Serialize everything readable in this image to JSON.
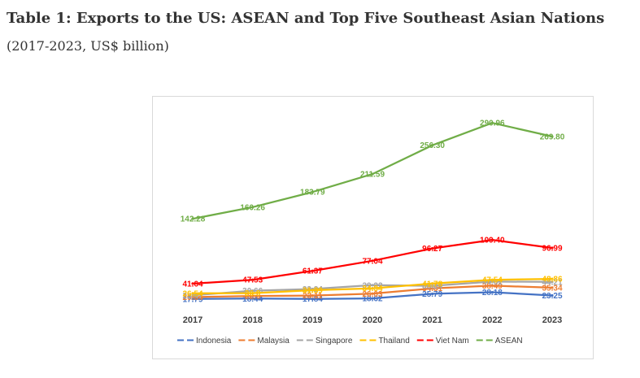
{
  "page": {
    "title": "Table 1: Exports to the US: ASEAN and Top Five Southeast Asian Nations",
    "subtitle": "(2017-2023, US$ billion)"
  },
  "chart_data": {
    "type": "line",
    "categories": [
      "2017",
      "2018",
      "2019",
      "2020",
      "2021",
      "2022",
      "2023"
    ],
    "series": [
      {
        "name": "Indonesia",
        "color": "#4472C4",
        "values": [
          17.79,
          18.44,
          17.84,
          18.62,
          25.79,
          28.18,
          23.25
        ],
        "labels": [
          "17.79",
          "18.44",
          "17.84",
          "18.62",
          "25.79",
          "28.18",
          "23.25"
        ]
      },
      {
        "name": "Malaysia",
        "color": "#ED7D31",
        "values": [
          20.64,
          22.5,
          23.11,
          26.03,
          34.31,
          38.49,
          35.34
        ],
        "labels": [
          "20.64",
          "22.5",
          "23.11",
          "26.03",
          "34.31",
          "38.49",
          "35.34"
        ]
      },
      {
        "name": "Singapore",
        "color": "#A5A5A5",
        "values": [
          23.47,
          30.66,
          33.24,
          39.22,
          38.24,
          44.81,
          44.21
        ],
        "labels": [
          "23.47",
          "30.66",
          "33.24",
          "39.22",
          "38.24",
          "44.81",
          "44.21"
        ]
      },
      {
        "name": "Thailand",
        "color": "#FFC000",
        "values": [
          26.54,
          26.9,
          31.39,
          34.34,
          41.78,
          47.54,
          48.86
        ],
        "labels": [
          "26.54",
          "26.9",
          "31.39",
          "34.34",
          "41.78",
          "47.54",
          "48.86"
        ]
      },
      {
        "name": "Viet Nam",
        "color": "#FF0000",
        "values": [
          41.64,
          47.53,
          61.37,
          77.04,
          96.27,
          109.4,
          96.99
        ],
        "labels": [
          "41.64",
          "47.53",
          "61.37",
          "77.04",
          "96.27",
          "109.40",
          "96.99"
        ]
      },
      {
        "name": "ASEAN",
        "color": "#70AD47",
        "values": [
          142.28,
          160.26,
          183.79,
          211.59,
          256.3,
          290.96,
          269.8
        ],
        "labels": [
          "142.28",
          "160.26",
          "183.79",
          "211.59",
          "256.30",
          "290.96",
          "269.80"
        ]
      }
    ],
    "ylim": [
      15,
      300
    ],
    "grid": false,
    "legend_position": "bottom"
  }
}
